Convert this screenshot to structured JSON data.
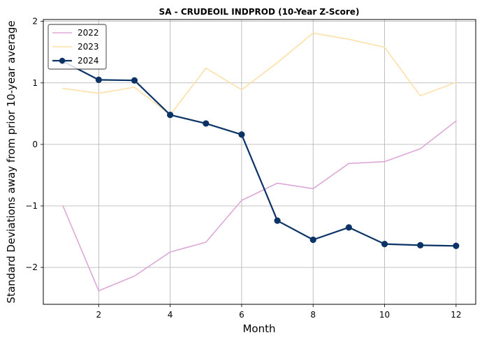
{
  "chart_data": {
    "type": "line",
    "title": "SA - CRUDEOIL INDPROD (10-Year Z-Score)",
    "xlabel": "Month",
    "ylabel": "Standard Deviations away from prior 10-year average",
    "xlim": [
      0.45,
      12.55
    ],
    "ylim": [
      -2.6,
      2.03
    ],
    "xticks": [
      2,
      4,
      6,
      8,
      10,
      12
    ],
    "xtick_labels": [
      "2",
      "4",
      "6",
      "8",
      "10",
      "12"
    ],
    "yticks": [
      -2,
      -1,
      0,
      1,
      2
    ],
    "ytick_labels": [
      "−2",
      "−1",
      "0",
      "1",
      "2"
    ],
    "grid": true,
    "legend_position": "top-left",
    "series": [
      {
        "name": "2022",
        "color": "#dda8d8",
        "markers": false,
        "x": [
          1,
          2,
          3,
          4,
          5,
          6,
          7,
          8,
          9,
          10,
          11,
          12
        ],
        "values": [
          -1.0,
          -2.38,
          -2.14,
          -1.75,
          -1.59,
          -0.91,
          -0.63,
          -0.72,
          -0.31,
          -0.28,
          -0.07,
          0.38
        ]
      },
      {
        "name": "2023",
        "color": "#fde0a8",
        "markers": false,
        "x": [
          1,
          2,
          3,
          4,
          5,
          6,
          7,
          8,
          9,
          10,
          11,
          12
        ],
        "values": [
          0.91,
          0.83,
          0.93,
          0.48,
          1.24,
          0.89,
          1.33,
          1.81,
          1.71,
          1.58,
          0.79,
          1.01
        ]
      },
      {
        "name": "2024",
        "color": "#0b3366",
        "markers": true,
        "x": [
          1,
          2,
          3,
          4,
          5,
          6,
          7,
          8,
          9,
          10,
          11,
          12
        ],
        "values": [
          1.35,
          1.05,
          1.04,
          0.48,
          0.34,
          0.16,
          -1.24,
          -1.55,
          -1.35,
          -1.62,
          -1.64,
          -1.65
        ]
      }
    ]
  }
}
